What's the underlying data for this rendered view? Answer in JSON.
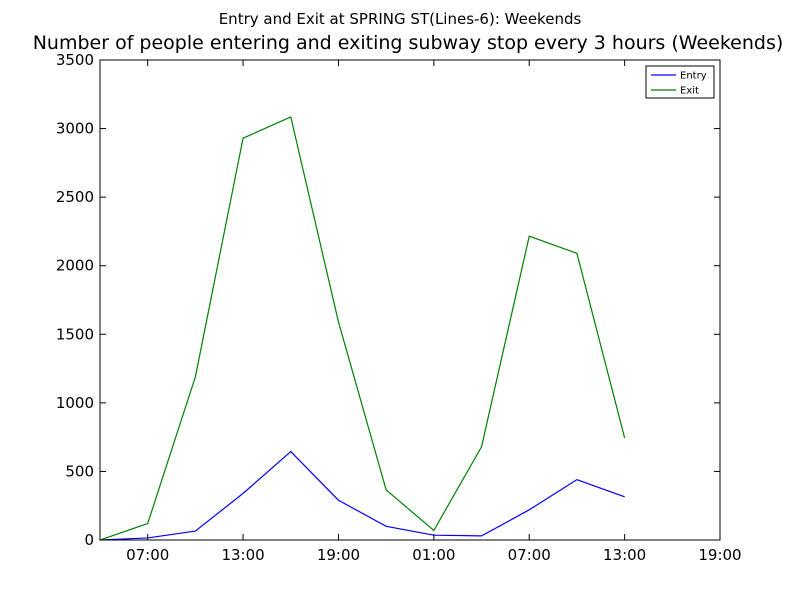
{
  "figure": {
    "suptitle": "Entry and Exit at SPRING ST(Lines-6): Weekends",
    "title": "Number of people entering and exiting subway stop every 3 hours (Weekends)"
  },
  "chart_data": {
    "type": "line",
    "x_unit": "hours",
    "x": [
      4,
      7,
      10,
      13,
      16,
      19,
      22,
      25,
      28,
      31,
      34,
      37,
      40,
      43
    ],
    "xlim": [
      4,
      43
    ],
    "ylim": [
      0,
      3500
    ],
    "xticks": [
      {
        "value": 7,
        "label": "07:00"
      },
      {
        "value": 13,
        "label": "13:00"
      },
      {
        "value": 19,
        "label": "19:00"
      },
      {
        "value": 25,
        "label": "01:00"
      },
      {
        "value": 31,
        "label": "07:00"
      },
      {
        "value": 37,
        "label": "13:00"
      },
      {
        "value": 43,
        "label": "19:00"
      }
    ],
    "yticks": [
      0,
      500,
      1000,
      1500,
      2000,
      2500,
      3000,
      3500
    ],
    "series": [
      {
        "name": "Entry",
        "color": "#0000ff",
        "values": [
          0,
          15,
          65,
          340,
          645,
          290,
          100,
          35,
          30,
          220,
          440,
          315,
          null,
          null
        ]
      },
      {
        "name": "Exit",
        "color": "#008000",
        "values": [
          0,
          120,
          1190,
          2930,
          3085,
          1590,
          365,
          70,
          680,
          2215,
          2090,
          745,
          null,
          null
        ]
      }
    ],
    "legend": "top-right",
    "grid": false
  }
}
